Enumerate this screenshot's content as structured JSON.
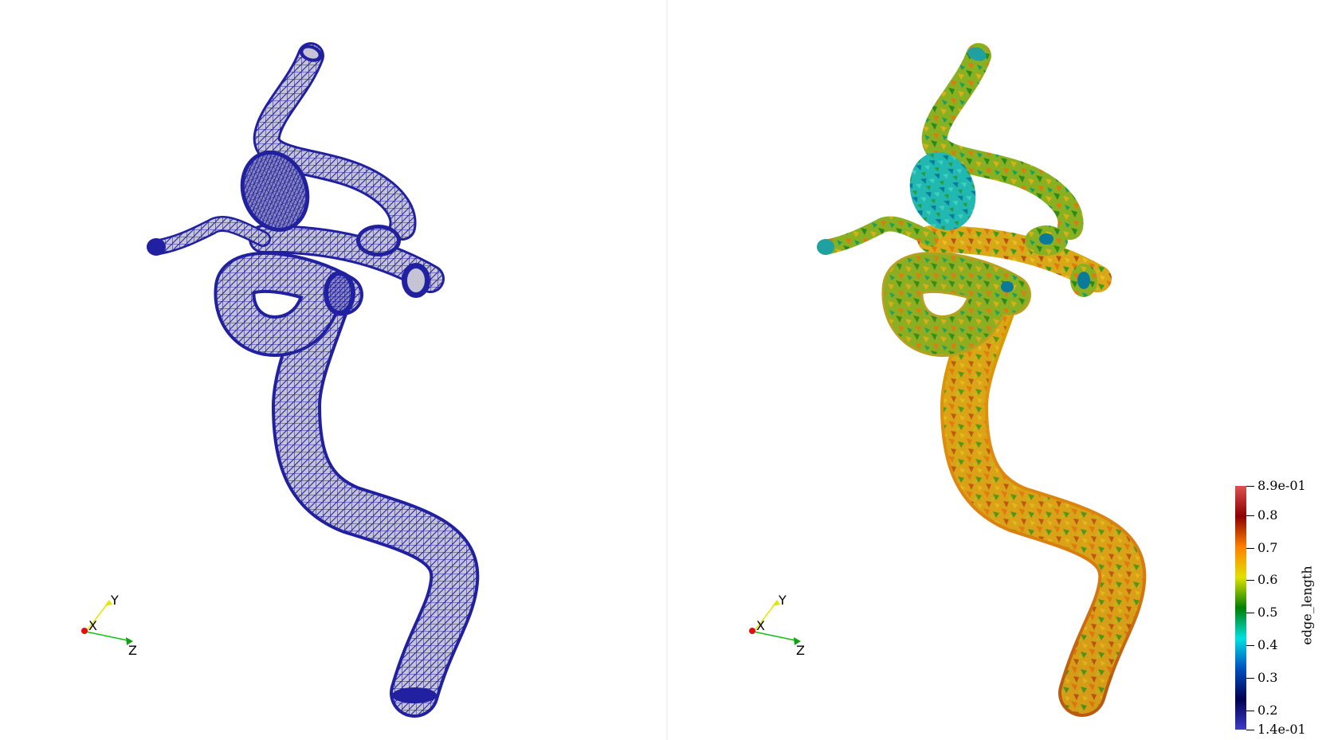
{
  "views": [
    {
      "name": "mesh-wireframe-view",
      "style": "wireframe",
      "surface_color": "#c9c6d6",
      "edge_color": "#1f1fa0"
    },
    {
      "name": "edge-length-view",
      "style": "scalar-colored",
      "scalar": "edge_length"
    }
  ],
  "orientation_axes": {
    "x_label": "X",
    "y_label": "Y",
    "z_label": "Z",
    "x_color": "#e01010",
    "y_color": "#e6e600",
    "z_color": "#10c010"
  },
  "colorbar": {
    "title": "edge_length",
    "max_label": "8.9e-01",
    "min_label": "1.4e-01",
    "tick_labels": [
      "0.8",
      "0.7",
      "0.6",
      "0.5",
      "0.4",
      "0.3",
      "0.2"
    ],
    "range": [
      0.14,
      0.89
    ],
    "tick_values": [
      0.8,
      0.7,
      0.6,
      0.5,
      0.4,
      0.3,
      0.2
    ],
    "colormap": [
      "#3c3cc8",
      "#000050",
      "#0050c0",
      "#00e0e0",
      "#008000",
      "#e0e000",
      "#ff8000",
      "#8b0000",
      "#e05050"
    ]
  }
}
